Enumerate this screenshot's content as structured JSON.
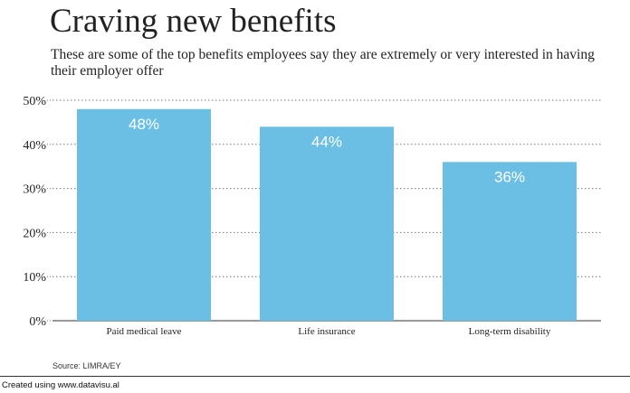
{
  "title": "Craving new benefits",
  "subtitle": "These are some of the top benefits employees say they are extremely or very interested in having their employer offer",
  "source": "Source: LIMRA/EY",
  "footer": "Created using www.datavisu.al",
  "colors": {
    "bar": "#6bbfe4",
    "bar_label": "#ffffff",
    "grid": "#777777",
    "text": "#222222"
  },
  "chart_data": {
    "type": "bar",
    "categories": [
      "Paid medical leave",
      "Life insurance",
      "Long-term disability"
    ],
    "values": [
      48,
      44,
      36
    ],
    "data_labels": [
      "48%",
      "44%",
      "36%"
    ],
    "ylim": [
      0,
      50
    ],
    "yticks": [
      0,
      10,
      20,
      30,
      40,
      50
    ],
    "ytick_labels": [
      "0%",
      "10%",
      "20%",
      "30%",
      "40%",
      "50%"
    ],
    "xlabel": "",
    "ylabel": "",
    "grid": "y-dotted"
  }
}
